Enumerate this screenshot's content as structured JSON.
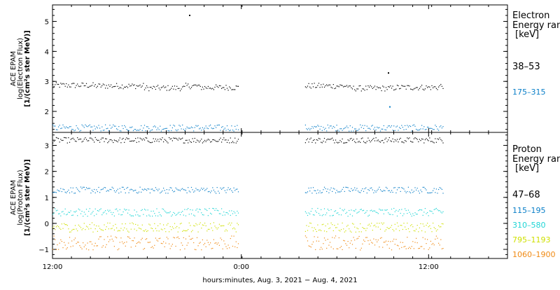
{
  "chart_data": [
    {
      "type": "scatter",
      "panel": "electron",
      "ylabel_lines": [
        "ACE EPAM",
        "log(Electron Flux)",
        "[1/(cm²s ster MeV)]"
      ],
      "y_ticks": [
        "2",
        "3",
        "4",
        "5"
      ],
      "ylim": [
        1.3,
        5.55
      ],
      "legend_title_lines": [
        "Electron",
        "Energy ranges",
        "[keV]"
      ],
      "series": [
        {
          "name": "38–53",
          "color": "#000000",
          "level": 2.85,
          "segments": [
            {
              "level": 2.87,
              "from": 0.0,
              "to": 0.09
            },
            {
              "level": 2.78,
              "from": 0.2,
              "to": 0.29
            },
            {
              "level": 2.8,
              "from": 0.32,
              "to": 0.45
            },
            {
              "level": 2.77,
              "from": 0.65,
              "to": 0.75
            },
            {
              "level": 2.8,
              "from": 0.75,
              "to": 0.85
            }
          ],
          "outliers": [
            {
              "t": 0.3,
              "v": 5.2
            },
            {
              "t": 0.737,
              "v": 3.28
            }
          ]
        },
        {
          "name": "175–315",
          "color": "#0a7fc8",
          "level": 1.45,
          "segments": [],
          "outliers": [
            {
              "t": 0.74,
              "v": 2.15
            }
          ]
        }
      ]
    },
    {
      "type": "scatter",
      "panel": "proton",
      "ylabel_lines": [
        "ACE EPAM",
        "log(Proton Flux)",
        "[1/(cm²s ster MeV)]"
      ],
      "y_ticks": [
        "−1",
        "0",
        "1",
        "2",
        "3"
      ],
      "ylim": [
        -1.35,
        3.5
      ],
      "legend_title_lines": [
        "Proton",
        "Energy ranges",
        "[keV]"
      ],
      "series": [
        {
          "name": "47–68",
          "color": "#000000",
          "level": 3.2,
          "segments": [],
          "outliers": []
        },
        {
          "name": "115–195",
          "color": "#0a7fc8",
          "level": 1.28,
          "segments": [],
          "outliers": []
        },
        {
          "name": "310–580",
          "color": "#1fd5d5",
          "level": 0.43,
          "segments": [],
          "outliers": []
        },
        {
          "name": "795–1193",
          "color": "#cfe000",
          "level": -0.15,
          "segments": [],
          "outliers": []
        },
        {
          "name": "1060–1900",
          "color": "#f08a14",
          "level": -0.75,
          "segments": [],
          "outliers": []
        }
      ]
    }
  ],
  "x_axis": {
    "ticks": [
      "12:00",
      "0:00",
      "12:00"
    ],
    "label": "hours:minutes, Aug.  3, 2021 − Aug.  4, 2021",
    "data_intervals": [
      [
        0.0,
        0.41
      ],
      [
        0.555,
        0.86
      ]
    ]
  },
  "colors": {
    "axis": "#000000",
    "background": "#ffffff"
  }
}
